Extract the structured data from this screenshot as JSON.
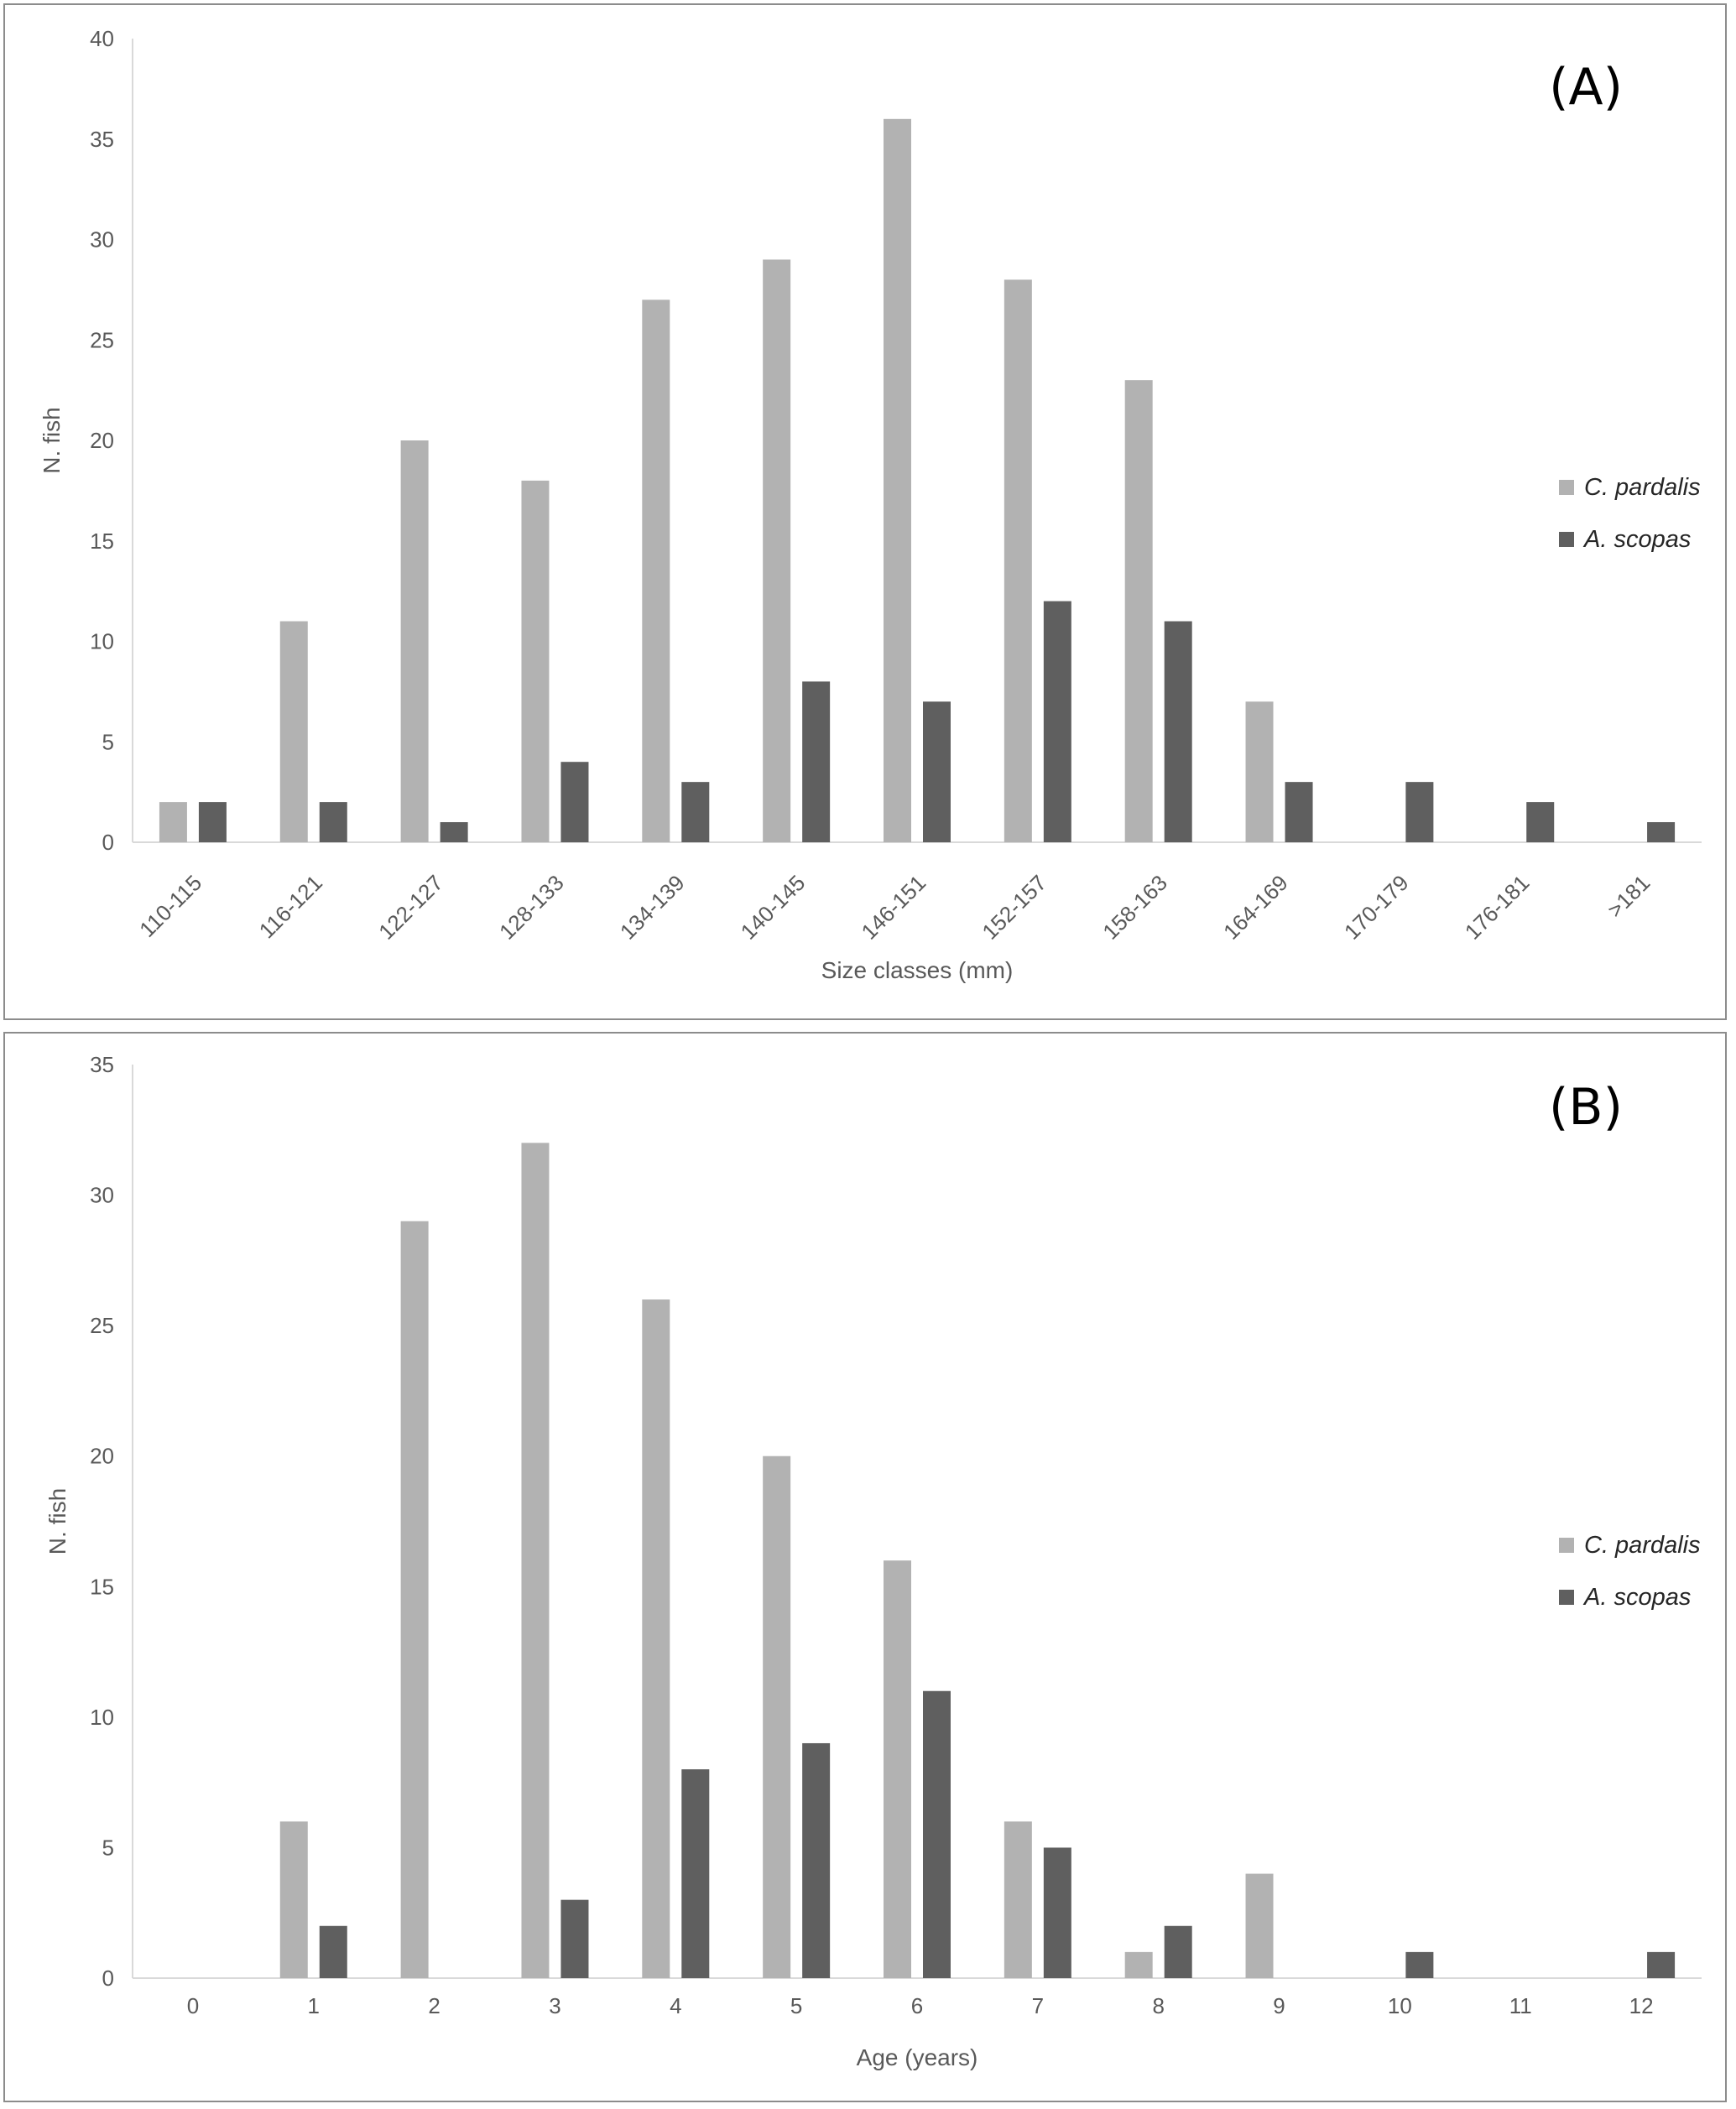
{
  "chart_data": [
    {
      "type": "bar",
      "panel_label": "(A)",
      "title": "",
      "xlabel": "Size classes (mm)",
      "ylabel": "N. fish",
      "ylim": [
        0,
        40
      ],
      "yticks": [
        0,
        5,
        10,
        15,
        20,
        25,
        30,
        35,
        40
      ],
      "categories": [
        "110-115",
        "116-121",
        "122-127",
        "128-133",
        "134-139",
        "140-145",
        "146-151",
        "152-157",
        "158-163",
        "164-169",
        "170-179",
        "176-181",
        ">181"
      ],
      "series": [
        {
          "name": "C. pardalis",
          "color": "#b2b2b2",
          "values": [
            2,
            11,
            20,
            18,
            27,
            29,
            36,
            28,
            23,
            7,
            0,
            0,
            0
          ]
        },
        {
          "name": "A. scopas",
          "color": "#5f5f5f",
          "values": [
            2,
            2,
            1,
            4,
            3,
            8,
            7,
            12,
            11,
            3,
            3,
            2,
            1
          ]
        }
      ],
      "legend_position": "right",
      "grid": false
    },
    {
      "type": "bar",
      "panel_label": "(B)",
      "title": "",
      "xlabel": "Age (years)",
      "ylabel": "N. fish",
      "ylim": [
        0,
        35
      ],
      "yticks": [
        0,
        5,
        10,
        15,
        20,
        25,
        30,
        35
      ],
      "categories": [
        "0",
        "1",
        "2",
        "3",
        "4",
        "5",
        "6",
        "7",
        "8",
        "9",
        "10",
        "11",
        "12"
      ],
      "series": [
        {
          "name": "C. pardalis",
          "color": "#b2b2b2",
          "values": [
            0,
            6,
            29,
            32,
            26,
            20,
            16,
            6,
            1,
            4,
            0,
            0,
            0
          ]
        },
        {
          "name": "A. scopas",
          "color": "#5f5f5f",
          "values": [
            0,
            2,
            0,
            3,
            8,
            9,
            11,
            5,
            2,
            0,
            1,
            0,
            1
          ]
        }
      ],
      "legend_position": "right",
      "grid": false
    }
  ]
}
